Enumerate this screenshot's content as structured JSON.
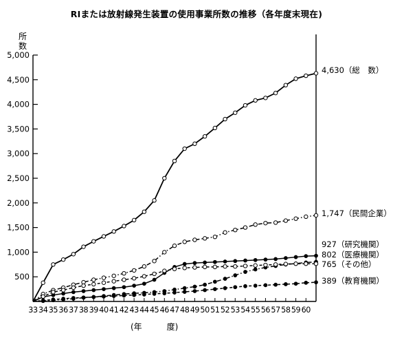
{
  "chart_data": {
    "type": "line",
    "title": "RIまたは放射線発生装置の使用事業所数の推移（各年度末現在)",
    "ylabel": "所数",
    "xlabel": "(年 度)",
    "ylim": [
      0,
      5000
    ],
    "yticks": [
      500,
      1000,
      1500,
      2000,
      2500,
      3000,
      3500,
      4000,
      4500,
      5000
    ],
    "ytick_labels": [
      "500",
      "1,000",
      "1,500",
      "2,000",
      "2,500",
      "3,000",
      "3,500",
      "4,000",
      "4,500",
      "5,000"
    ],
    "x_tick_labels": [
      "33",
      "34",
      "35",
      "36",
      "37",
      "38",
      "39",
      "40",
      "41",
      "42",
      "43",
      "44",
      "45",
      "46",
      "47",
      "48",
      "49",
      "50",
      "51",
      "52",
      "53",
      "54",
      "55",
      "56",
      "57",
      "58",
      "59",
      "60"
    ],
    "x": [
      33,
      34,
      35,
      36,
      37,
      38,
      39,
      40,
      41,
      42,
      43,
      44,
      45,
      46,
      47,
      48,
      49,
      50,
      51,
      52,
      53,
      54,
      55,
      56,
      57,
      58,
      59,
      60,
      61
    ],
    "grid": false,
    "legend": "right-end labels",
    "series": [
      {
        "name": "総　数",
        "end_label": "4,630（総　数）",
        "marker": "open",
        "style": "solid",
        "values": [
          0,
          380,
          750,
          850,
          960,
          1110,
          1220,
          1320,
          1420,
          1530,
          1650,
          1820,
          2050,
          2500,
          2850,
          3100,
          3200,
          3350,
          3520,
          3700,
          3830,
          3980,
          4080,
          4130,
          4230,
          4390,
          4520,
          4580,
          4630
        ]
      },
      {
        "name": "民間企業",
        "end_label": "1,747（民間企業）",
        "marker": "open",
        "style": "dashdot",
        "values": [
          0,
          150,
          230,
          280,
          340,
          390,
          440,
          480,
          520,
          570,
          630,
          710,
          820,
          1000,
          1130,
          1210,
          1250,
          1280,
          1310,
          1400,
          1450,
          1500,
          1560,
          1590,
          1600,
          1640,
          1680,
          1720,
          1747
        ]
      },
      {
        "name": "研究機関",
        "end_label": "927（研究機関）",
        "marker": "filled",
        "style": "solid",
        "values": [
          0,
          90,
          130,
          160,
          190,
          210,
          230,
          250,
          270,
          290,
          320,
          360,
          440,
          580,
          700,
          760,
          780,
          790,
          800,
          810,
          820,
          830,
          840,
          850,
          860,
          880,
          900,
          920,
          927
        ]
      },
      {
        "name": "医療機関",
        "end_label": "802（医療機関）",
        "marker": "filled",
        "style": "dashdot",
        "values": [
          0,
          10,
          25,
          40,
          55,
          75,
          90,
          110,
          130,
          150,
          165,
          175,
          190,
          210,
          240,
          270,
          300,
          340,
          400,
          460,
          530,
          600,
          650,
          690,
          720,
          750,
          770,
          790,
          802
        ]
      },
      {
        "name": "その他",
        "end_label": "765（その他）",
        "marker": "open",
        "style": "dashed",
        "values": [
          0,
          100,
          190,
          230,
          280,
          320,
          350,
          380,
          410,
          440,
          470,
          510,
          560,
          620,
          660,
          680,
          690,
          700,
          700,
          710,
          710,
          720,
          730,
          740,
          750,
          760,
          765,
          765,
          765
        ]
      },
      {
        "name": "教育機関",
        "end_label": "389（教育機関）",
        "marker": "filled",
        "style": "dashed",
        "values": [
          0,
          20,
          40,
          55,
          70,
          80,
          90,
          100,
          110,
          120,
          130,
          140,
          155,
          165,
          180,
          195,
          210,
          230,
          250,
          270,
          290,
          310,
          320,
          330,
          340,
          350,
          360,
          380,
          389
        ]
      }
    ]
  }
}
